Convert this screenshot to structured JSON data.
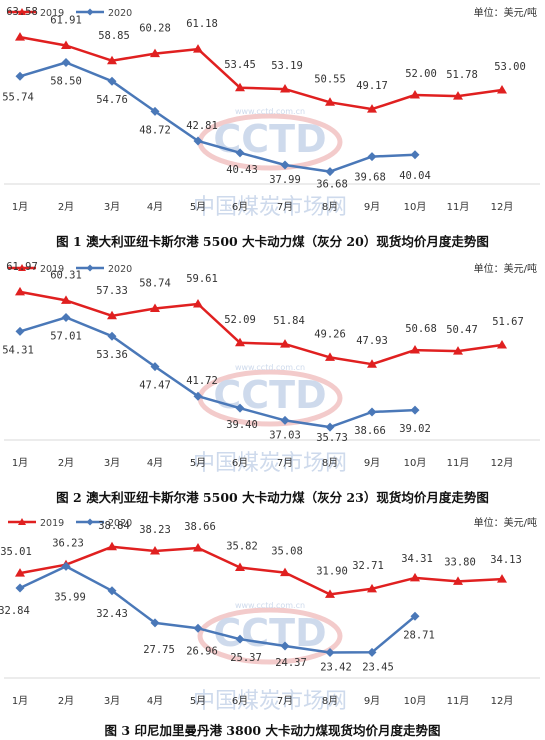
{
  "chart_data": [
    {
      "type": "line",
      "title": "图 1   澳大利亚纽卡斯尔港 5500 大卡动力煤（灰分 20）现货均价月度走势图",
      "unit_label": "单位：美元/吨",
      "categories": [
        "1月",
        "2月",
        "3月",
        "4月",
        "5月",
        "6月",
        "7月",
        "8月",
        "9月",
        "10月",
        "11月",
        "12月"
      ],
      "series": [
        {
          "name": "2019",
          "color": "#e02020",
          "marker": "triangle",
          "values": [
            63.58,
            61.91,
            58.85,
            60.28,
            61.18,
            53.45,
            53.19,
            50.55,
            49.17,
            52.0,
            51.78,
            53.0
          ]
        },
        {
          "name": "2020",
          "color": "#4a78b8",
          "marker": "diamond",
          "values": [
            55.74,
            58.5,
            54.76,
            48.72,
            42.81,
            40.43,
            37.99,
            36.68,
            39.68,
            40.04,
            null,
            null
          ]
        }
      ],
      "grid": false,
      "legend_position": "top-left",
      "watermark": {
        "logo": "CCTD",
        "url": "www.cctd.com.cn",
        "name": "中国煤炭市场网"
      }
    },
    {
      "type": "line",
      "title": "图 2   澳大利亚纽卡斯尔港 5500 大卡动力煤（灰分 23）现货均价月度走势图",
      "unit_label": "单位：美元/吨",
      "categories": [
        "1月",
        "2月",
        "3月",
        "4月",
        "5月",
        "6月",
        "7月",
        "8月",
        "9月",
        "10月",
        "11月",
        "12月"
      ],
      "series": [
        {
          "name": "2019",
          "color": "#e02020",
          "marker": "triangle",
          "values": [
            61.97,
            60.31,
            57.33,
            58.74,
            59.61,
            52.09,
            51.84,
            49.26,
            47.93,
            50.68,
            50.47,
            51.67
          ]
        },
        {
          "name": "2020",
          "color": "#4a78b8",
          "marker": "diamond",
          "values": [
            54.31,
            57.01,
            53.36,
            47.47,
            41.72,
            39.4,
            37.03,
            35.73,
            38.66,
            39.02,
            null,
            null
          ]
        }
      ],
      "grid": false,
      "legend_position": "top-left",
      "watermark": {
        "logo": "CCTD",
        "url": "www.cctd.com.cn",
        "name": "中国煤炭市场网"
      }
    },
    {
      "type": "line",
      "title": "图 3   印尼加里曼丹港 3800 大卡动力煤现货均价月度走势图",
      "unit_label": "单位：美元/吨",
      "categories": [
        "1月",
        "2月",
        "3月",
        "4月",
        "5月",
        "6月",
        "7月",
        "8月",
        "9月",
        "10月",
        "11月",
        "12月"
      ],
      "series": [
        {
          "name": "2019",
          "color": "#e02020",
          "marker": "triangle",
          "values": [
            35.01,
            36.23,
            38.84,
            38.23,
            38.66,
            35.82,
            35.08,
            31.9,
            32.71,
            34.31,
            33.8,
            34.13
          ]
        },
        {
          "name": "2020",
          "color": "#4a78b8",
          "marker": "diamond",
          "values": [
            32.84,
            35.99,
            32.43,
            27.75,
            26.96,
            25.37,
            24.37,
            23.42,
            23.45,
            28.71,
            null,
            null
          ]
        }
      ],
      "grid": false,
      "legend_position": "top-left",
      "watermark": {
        "logo": "CCTD",
        "url": "www.cctd.com.cn",
        "name": "中国煤炭市场网"
      }
    }
  ]
}
